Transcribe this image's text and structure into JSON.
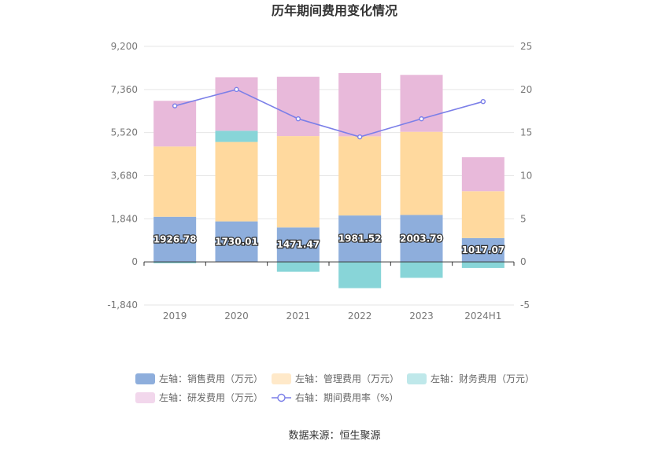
{
  "chart_data": {
    "type": "bar",
    "title": "历年期间费用变化情况",
    "categories": [
      "2019",
      "2020",
      "2021",
      "2022",
      "2023",
      "2024H1"
    ],
    "y_left": {
      "min": -1840,
      "max": 9200,
      "ticks": [
        "-1,840",
        "0",
        "1,840",
        "3,680",
        "5,520",
        "7,360",
        "9,200"
      ]
    },
    "y_right": {
      "min": -5,
      "max": 25,
      "ticks": [
        "-5",
        "0",
        "5",
        "10",
        "15",
        "20",
        "25"
      ]
    },
    "series": [
      {
        "name": "左轴：销售费用（万元）",
        "type": "bar",
        "color": "#8eaedc",
        "values": [
          1926.78,
          1730.01,
          1471.47,
          1981.52,
          2003.79,
          1017.07
        ],
        "labels": [
          "1926.78",
          "1730.01",
          "1471.47",
          "1981.52",
          "2003.79",
          "1017.07"
        ]
      },
      {
        "name": "左轴：管理费用（万元）",
        "type": "bar",
        "color": "#ffd99e",
        "values": [
          3000,
          3390,
          3900,
          3380,
          3550,
          2000
        ]
      },
      {
        "name": "左轴：财务费用（万元）",
        "type": "bar",
        "color": "#88d5d8",
        "values": [
          -60,
          480,
          -420,
          -1120,
          -680,
          -260
        ]
      },
      {
        "name": "左轴：研发费用（万元）",
        "type": "bar",
        "color": "#e8b9da",
        "values": [
          1950,
          2280,
          2530,
          2700,
          2430,
          1450
        ]
      },
      {
        "name": "右轴：期间费用率（%）",
        "type": "line",
        "color": "#7b7fe8",
        "values": [
          18.1,
          20.0,
          16.6,
          14.5,
          16.6,
          18.6
        ]
      }
    ],
    "legend_position": "bottom",
    "grid": true
  },
  "source": "数据来源：恒生聚源"
}
